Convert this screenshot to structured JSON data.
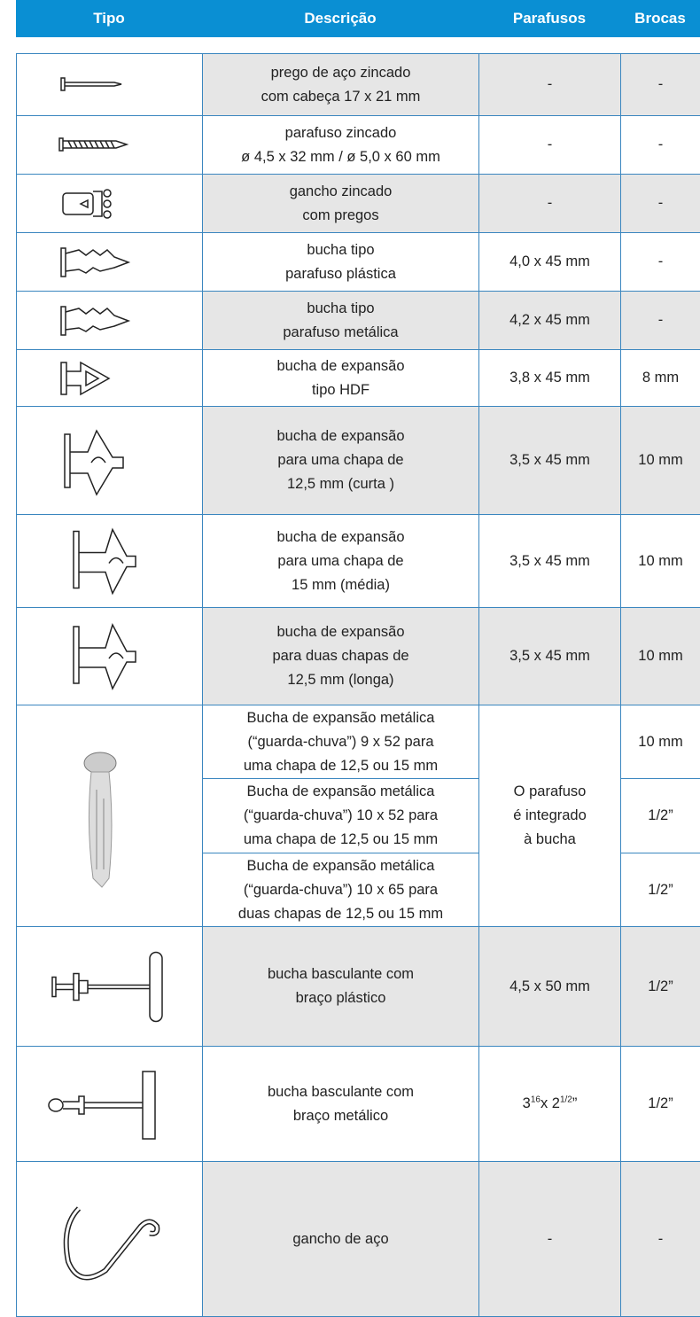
{
  "header": {
    "columns": [
      "Tipo",
      "Descrição",
      "Parafusos",
      "Brocas"
    ]
  },
  "table": {
    "rows": [
      {
        "description": [
          "prego de aço zincado",
          "com cabeça 17 x 21 mm"
        ],
        "screws": "-",
        "drill": "-"
      },
      {
        "description": [
          "parafuso zincado",
          "ø 4,5 x 32 mm / ø 5,0 x 60 mm"
        ],
        "screws": "-",
        "drill": "-"
      },
      {
        "description": [
          "gancho zincado",
          "com pregos"
        ],
        "screws": "-",
        "drill": "-"
      },
      {
        "description": [
          "bucha tipo",
          "parafuso plástica"
        ],
        "screws": "4,0 x 45 mm",
        "drill": "-"
      },
      {
        "description": [
          "bucha tipo",
          "parafuso metálica"
        ],
        "screws": "4,2 x 45 mm",
        "drill": "-"
      },
      {
        "description": [
          "bucha de expansão",
          "tipo HDF"
        ],
        "screws": "3,8 x 45 mm",
        "drill": "8 mm"
      },
      {
        "description": [
          "bucha de expansão",
          "para uma chapa de",
          "12,5 mm (curta )"
        ],
        "screws": "3,5 x 45 mm",
        "drill": "10 mm"
      },
      {
        "description": [
          "bucha de expansão",
          "para uma chapa de",
          "15 mm (média)"
        ],
        "screws": "3,5 x 45 mm",
        "drill": "10 mm"
      },
      {
        "description": [
          "bucha de expansão",
          "para duas chapas de",
          "12,5 mm (longa)"
        ],
        "screws": "3,5 x 45 mm",
        "drill": "10 mm"
      },
      {
        "screws": [
          "O parafuso",
          "é integrado",
          "à bucha"
        ],
        "items": [
          {
            "description": [
              "Bucha de expansão metálica",
              "(“guarda-chuva”) 9 x 52 para",
              "uma chapa de 12,5 ou 15 mm"
            ],
            "drill": "10 mm"
          },
          {
            "description": [
              "Bucha de expansão metálica",
              "(“guarda-chuva”) 10 x 52 para",
              "uma chapa de 12,5 ou 15 mm"
            ],
            "drill": "1/2”"
          },
          {
            "description": [
              "Bucha de expansão metálica",
              "(“guarda-chuva”) 10 x 65 para",
              "duas chapas de 12,5 ou 15 mm"
            ],
            "drill": "1/2”"
          }
        ]
      },
      {
        "description": [
          "bucha basculante com",
          "braço plástico"
        ],
        "screws": "4,5 x 50 mm",
        "drill": "1/2”"
      },
      {
        "description": [
          "bucha basculante com",
          "braço metálico"
        ],
        "screws": [
          "3",
          "16",
          "x 2",
          "1/2",
          "”"
        ],
        "drill": "1/2”"
      },
      {
        "description": [
          "gancho de aço"
        ],
        "screws": "-",
        "drill": "-"
      }
    ]
  }
}
